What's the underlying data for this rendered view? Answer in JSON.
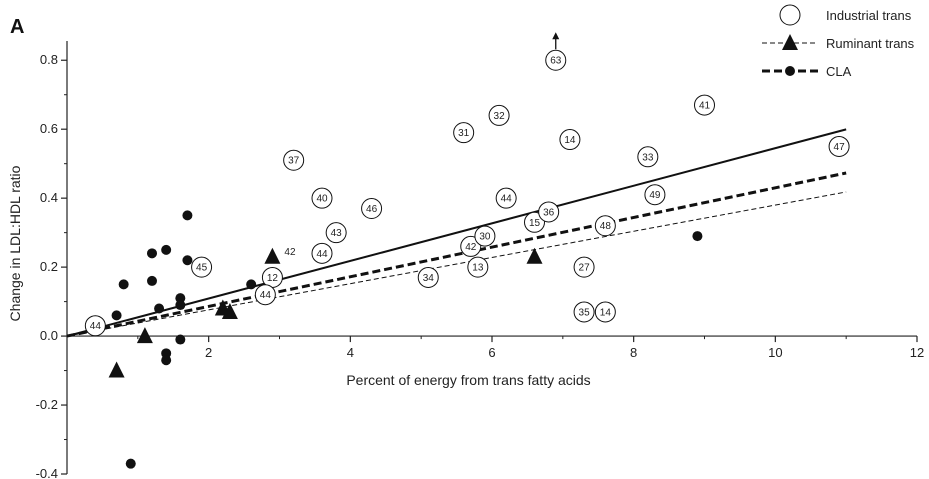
{
  "panel_letter": "A",
  "chart_data": {
    "type": "scatter",
    "title": "",
    "xlabel": "Percent of energy from trans fatty acids",
    "ylabel": "Change in LDL:HDL ratio",
    "xlim": [
      0,
      12
    ],
    "ylim": [
      -0.4,
      0.85
    ],
    "xticks": [
      2,
      4,
      6,
      8,
      10,
      12
    ],
    "yticks": [
      -0.4,
      -0.2,
      0.0,
      0.2,
      0.4,
      0.6,
      0.8
    ],
    "xtick_labels": [
      "2",
      "4",
      "6",
      "8",
      "10",
      "12"
    ],
    "ytick_labels": [
      "-0.4",
      "-0.2",
      "0.0",
      "0.2",
      "0.4",
      "0.6",
      "0.8"
    ],
    "grid": false,
    "legend_position": "top-right",
    "series": [
      {
        "name": "Industrial trans",
        "marker": "open-circle",
        "line": "solid",
        "color": "#111111",
        "fit": {
          "slope": 0.0545,
          "intercept": 0.0,
          "x_end": 11.0
        },
        "points": [
          {
            "x": 0.4,
            "y": 0.03,
            "label": "44"
          },
          {
            "x": 1.9,
            "y": 0.2,
            "label": "45"
          },
          {
            "x": 2.9,
            "y": 0.17,
            "label": "12"
          },
          {
            "x": 2.8,
            "y": 0.12,
            "label": "44"
          },
          {
            "x": 3.2,
            "y": 0.51,
            "label": "37"
          },
          {
            "x": 3.6,
            "y": 0.4,
            "label": "40"
          },
          {
            "x": 3.8,
            "y": 0.3,
            "label": "43"
          },
          {
            "x": 3.6,
            "y": 0.24,
            "label": "44"
          },
          {
            "x": 4.3,
            "y": 0.37,
            "label": "46"
          },
          {
            "x": 5.1,
            "y": 0.17,
            "label": "34"
          },
          {
            "x": 5.6,
            "y": 0.59,
            "label": "31"
          },
          {
            "x": 5.7,
            "y": 0.26,
            "label": "42"
          },
          {
            "x": 5.8,
            "y": 0.2,
            "label": "13"
          },
          {
            "x": 5.9,
            "y": 0.29,
            "label": "30"
          },
          {
            "x": 6.1,
            "y": 0.64,
            "label": "32"
          },
          {
            "x": 6.2,
            "y": 0.4,
            "label": "44"
          },
          {
            "x": 6.6,
            "y": 0.33,
            "label": "15"
          },
          {
            "x": 6.8,
            "y": 0.36,
            "label": "36"
          },
          {
            "x": 6.9,
            "y": 0.8,
            "label": "63"
          },
          {
            "x": 7.1,
            "y": 0.57,
            "label": "14"
          },
          {
            "x": 7.3,
            "y": 0.2,
            "label": "27"
          },
          {
            "x": 7.3,
            "y": 0.07,
            "label": "35"
          },
          {
            "x": 7.6,
            "y": 0.07,
            "label": "14"
          },
          {
            "x": 7.6,
            "y": 0.32,
            "label": "48"
          },
          {
            "x": 8.2,
            "y": 0.52,
            "label": "33"
          },
          {
            "x": 8.3,
            "y": 0.41,
            "label": "49"
          },
          {
            "x": 9.0,
            "y": 0.67,
            "label": "41"
          },
          {
            "x": 10.9,
            "y": 0.55,
            "label": "47"
          }
        ]
      },
      {
        "name": "Ruminant trans",
        "marker": "filled-triangle",
        "line": "thin-dashed",
        "color": "#111111",
        "fit": {
          "slope": 0.038,
          "intercept": 0.0,
          "x_end": 11.0
        },
        "points": [
          {
            "x": 0.7,
            "y": -0.1
          },
          {
            "x": 1.1,
            "y": 0.0
          },
          {
            "x": 2.2,
            "y": 0.08
          },
          {
            "x": 2.3,
            "y": 0.07
          },
          {
            "x": 2.9,
            "y": 0.23,
            "label": "42"
          },
          {
            "x": 6.6,
            "y": 0.23
          }
        ]
      },
      {
        "name": "CLA",
        "marker": "filled-circle",
        "line": "thick-dashed",
        "color": "#111111",
        "fit": {
          "slope": 0.043,
          "intercept": 0.0,
          "x_end": 11.0
        },
        "points": [
          {
            "x": 0.7,
            "y": 0.06
          },
          {
            "x": 0.8,
            "y": 0.15
          },
          {
            "x": 0.9,
            "y": -0.37
          },
          {
            "x": 1.2,
            "y": 0.24
          },
          {
            "x": 1.2,
            "y": 0.16
          },
          {
            "x": 1.3,
            "y": 0.08
          },
          {
            "x": 1.4,
            "y": 0.25
          },
          {
            "x": 1.4,
            "y": -0.05
          },
          {
            "x": 1.4,
            "y": -0.07
          },
          {
            "x": 1.6,
            "y": 0.11
          },
          {
            "x": 1.6,
            "y": 0.09
          },
          {
            "x": 1.6,
            "y": -0.01
          },
          {
            "x": 1.7,
            "y": 0.35
          },
          {
            "x": 1.7,
            "y": 0.22
          },
          {
            "x": 2.6,
            "y": 0.15
          },
          {
            "x": 8.9,
            "y": 0.29
          }
        ]
      }
    ],
    "annotations": [
      {
        "type": "arrow-up",
        "x": 6.9,
        "y": 0.8,
        "note": "value off scale"
      }
    ]
  }
}
